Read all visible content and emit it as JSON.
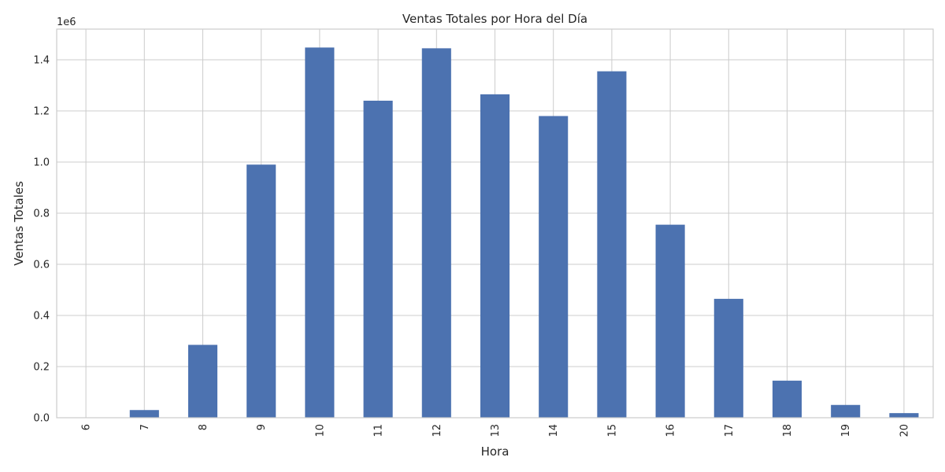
{
  "chart_data": {
    "type": "bar",
    "title": "Ventas Totales por Hora del Día",
    "xlabel": "Hora",
    "ylabel": "Ventas Totales",
    "y_scale_label": "1e6",
    "categories": [
      "6",
      "7",
      "8",
      "9",
      "10",
      "11",
      "12",
      "13",
      "14",
      "15",
      "16",
      "17",
      "18",
      "19",
      "20"
    ],
    "values": [
      0,
      30000,
      285000,
      990000,
      1448000,
      1240000,
      1445000,
      1265000,
      1180000,
      1355000,
      755000,
      465000,
      145000,
      50000,
      18000
    ],
    "ylim": [
      0,
      1520000
    ],
    "yticks": [
      0,
      200000,
      400000,
      600000,
      800000,
      1000000,
      1200000,
      1400000
    ],
    "ytick_labels": [
      "0.0",
      "0.2",
      "0.4",
      "0.6",
      "0.8",
      "1.0",
      "1.2",
      "1.4"
    ],
    "grid": true,
    "bar_color": "#4c72b0",
    "grid_color": "#cccccc",
    "tick_rotation": "vertical"
  }
}
